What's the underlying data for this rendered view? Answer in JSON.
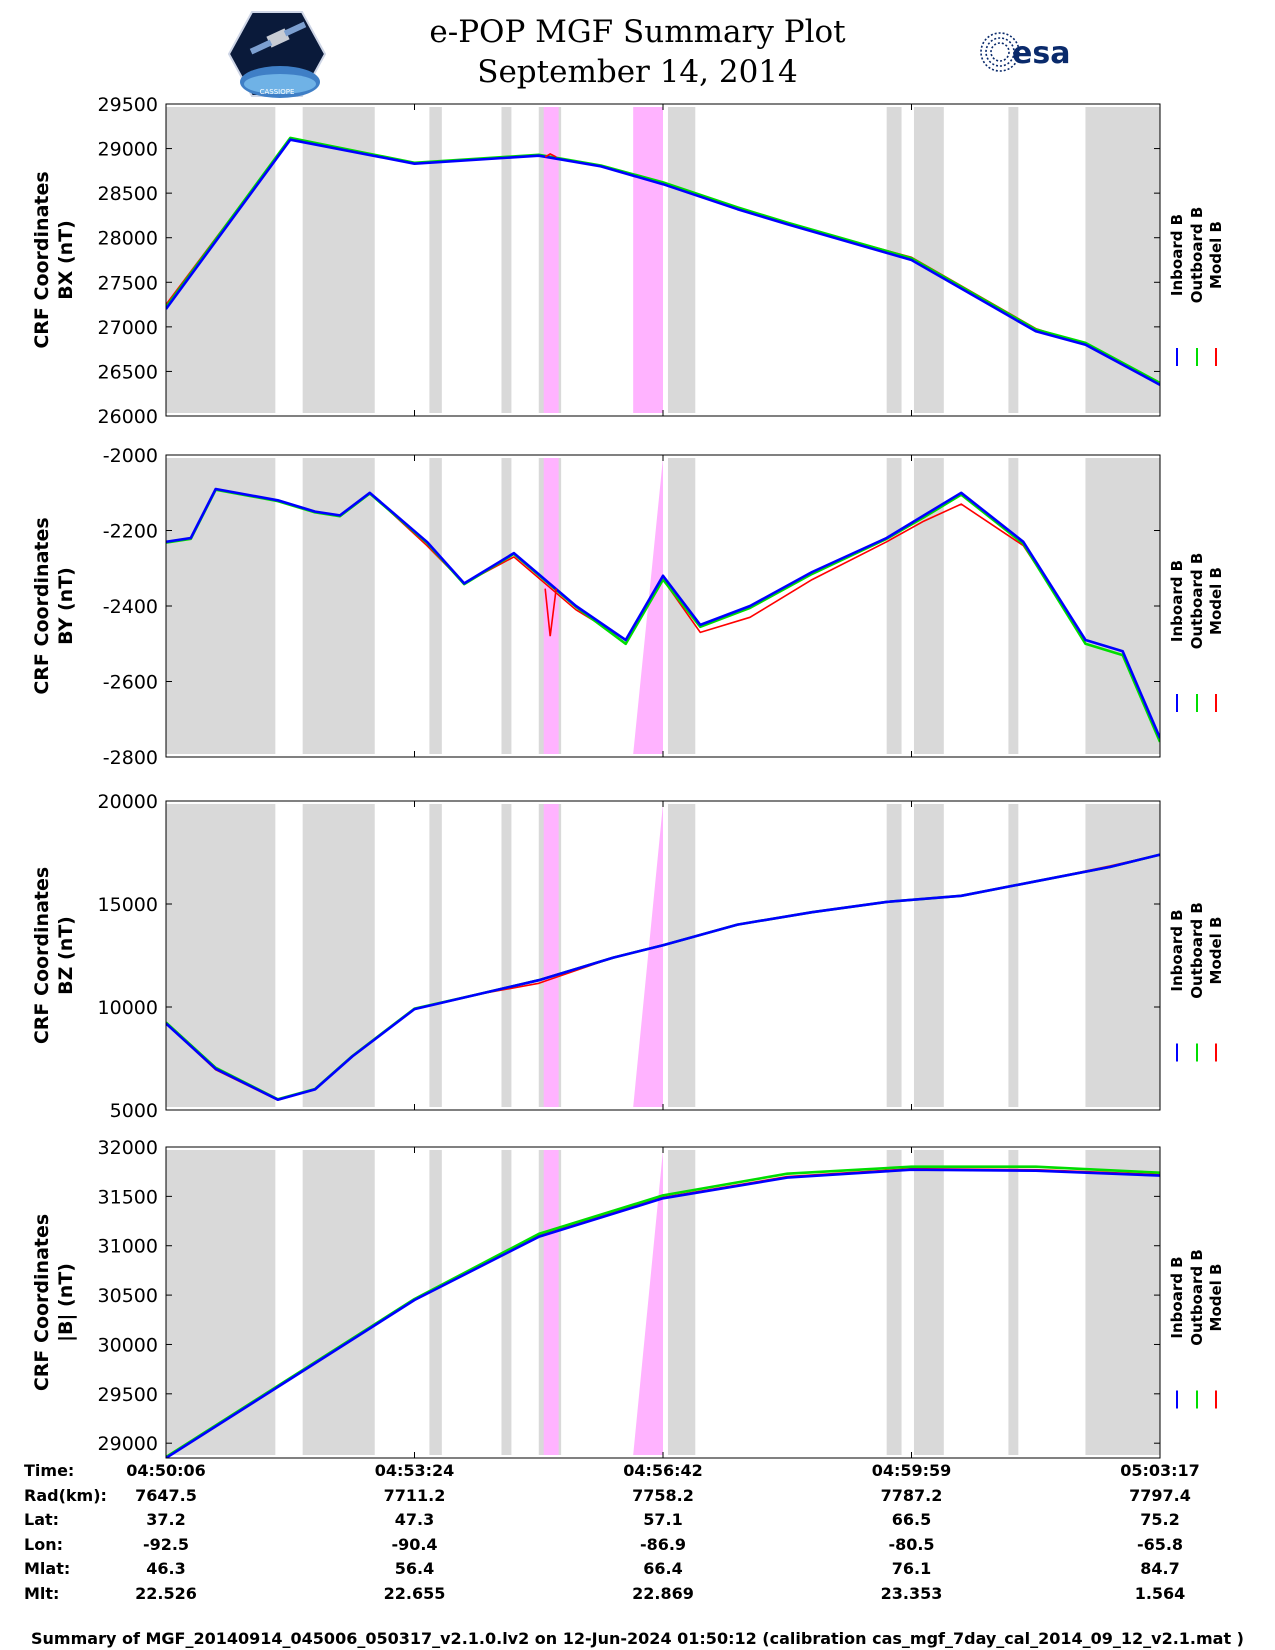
{
  "header": {
    "title_line1": "e-POP MGF Summary Plot",
    "title_line2": "September 14, 2014",
    "logo_left_text": "CASSIOPE",
    "logo_right_text": "esa"
  },
  "colors": {
    "inboard": "#0000ff",
    "outboard": "#00dd00",
    "model": "#ff0000",
    "shade_gray": "#d9d9d9",
    "shade_magenta": "#ffb3ff"
  },
  "legend": [
    "Inboard B",
    "Outboard B",
    "Model B"
  ],
  "chart_data": [
    {
      "type": "line",
      "title": "",
      "ylabel": [
        "CRF Coordinates",
        "BX (nT)"
      ],
      "xlabel": "",
      "xlim": [
        0,
        4.0
      ],
      "ylim": [
        26000,
        29500
      ],
      "yticks": [
        26000,
        26500,
        27000,
        27500,
        28000,
        28500,
        29000,
        29500
      ],
      "ytick_labels": [
        "26000",
        "26500",
        "27000",
        "27500",
        "28000",
        "28500",
        "29000",
        "29500"
      ],
      "x_minutes_from_start": [
        0,
        0.5,
        1.0,
        1.5,
        1.75,
        2.0,
        2.3,
        2.5,
        3.0,
        3.5,
        3.7,
        4.0
      ],
      "series": [
        {
          "name": "Inboard B",
          "values": [
            27200,
            29100,
            28830,
            28920,
            28800,
            28600,
            28320,
            28150,
            27750,
            26950,
            26800,
            26350
          ]
        },
        {
          "name": "Outboard B",
          "values": [
            27220,
            29120,
            28840,
            28930,
            28810,
            28620,
            28340,
            28170,
            27770,
            26970,
            26820,
            26370
          ]
        },
        {
          "name": "Model B",
          "values": [
            27250,
            29110,
            28830,
            28930,
            28810,
            28610,
            28330,
            28160,
            27780,
            26980,
            26800,
            26350
          ]
        }
      ],
      "annotations": {
        "model_spike_at_min": 1.55,
        "model_spike_value": 28940
      }
    },
    {
      "type": "line",
      "title": "",
      "ylabel": [
        "CRF Coordinates",
        "BY (nT)"
      ],
      "xlabel": "",
      "xlim": [
        0,
        4.0
      ],
      "ylim": [
        -2800,
        -2000
      ],
      "yticks": [
        -2800,
        -2600,
        -2400,
        -2200,
        -2000
      ],
      "ytick_labels": [
        "-2800",
        "-2600",
        "-2400",
        "-2200",
        "-2000"
      ],
      "x_minutes_from_start": [
        0,
        0.1,
        0.2,
        0.45,
        0.6,
        0.7,
        0.82,
        1.05,
        1.2,
        1.4,
        1.65,
        1.85,
        2.0,
        2.15,
        2.35,
        2.6,
        2.9,
        3.05,
        3.2,
        3.45,
        3.7,
        3.85,
        4.0
      ],
      "series": [
        {
          "name": "Inboard B",
          "values": [
            -2230,
            -2220,
            -2090,
            -2120,
            -2150,
            -2160,
            -2100,
            -2230,
            -2340,
            -2260,
            -2400,
            -2490,
            -2320,
            -2450,
            -2400,
            -2310,
            -2220,
            -2160,
            -2100,
            -2230,
            -2490,
            -2520,
            -2750
          ]
        },
        {
          "name": "Outboard B",
          "values": [
            -2232,
            -2222,
            -2092,
            -2122,
            -2152,
            -2162,
            -2102,
            -2232,
            -2342,
            -2262,
            -2402,
            -2500,
            -2330,
            -2455,
            -2405,
            -2315,
            -2222,
            -2165,
            -2105,
            -2235,
            -2500,
            -2530,
            -2760
          ]
        },
        {
          "name": "Model B",
          "values": [
            -2230,
            -2220,
            -2090,
            -2120,
            -2150,
            -2160,
            -2100,
            -2240,
            -2340,
            -2270,
            -2410,
            -2490,
            -2330,
            -2470,
            -2430,
            -2330,
            -2230,
            -2175,
            -2130,
            -2240,
            -2490,
            -2520,
            -2750
          ]
        }
      ],
      "annotations": {
        "model_dip_at_min": 1.55,
        "model_dip_value": -2480
      }
    },
    {
      "type": "line",
      "title": "",
      "ylabel": [
        "CRF Coordinates",
        "BZ (nT)"
      ],
      "xlabel": "",
      "xlim": [
        0,
        4.0
      ],
      "ylim": [
        5000,
        20000
      ],
      "yticks": [
        5000,
        10000,
        15000,
        20000
      ],
      "ytick_labels": [
        "5000",
        "10000",
        "15000",
        "20000"
      ],
      "x_minutes_from_start": [
        0,
        0.2,
        0.45,
        0.6,
        0.75,
        1.0,
        1.25,
        1.5,
        1.8,
        2.0,
        2.3,
        2.6,
        2.9,
        3.2,
        3.5,
        3.8,
        4.0
      ],
      "series": [
        {
          "name": "Inboard B",
          "values": [
            9200,
            7000,
            5500,
            6000,
            7600,
            9900,
            10600,
            11300,
            12400,
            13000,
            14000,
            14600,
            15100,
            15400,
            16100,
            16800,
            17400
          ]
        },
        {
          "name": "Outboard B",
          "values": [
            9250,
            7050,
            5520,
            6020,
            7620,
            9920,
            10600,
            11300,
            12400,
            13000,
            14000,
            14600,
            15100,
            15400,
            16100,
            16800,
            17400
          ]
        },
        {
          "name": "Model B",
          "values": [
            9200,
            6950,
            5480,
            6000,
            7600,
            9900,
            10600,
            11150,
            12400,
            13000,
            14000,
            14600,
            15100,
            15400,
            16100,
            16850,
            17400
          ]
        }
      ]
    },
    {
      "type": "line",
      "title": "",
      "ylabel": [
        "CRF Coordinates",
        "|B| (nT)"
      ],
      "xlabel": "",
      "xlim": [
        0,
        4.0
      ],
      "ylim": [
        28850,
        32000
      ],
      "yticks": [
        29000,
        29500,
        30000,
        30500,
        31000,
        31500,
        32000
      ],
      "ytick_labels": [
        "29000",
        "29500",
        "30000",
        "30500",
        "31000",
        "31500",
        "32000"
      ],
      "x_minutes_from_start": [
        0,
        0.5,
        1.0,
        1.5,
        2.0,
        2.5,
        3.0,
        3.5,
        4.0
      ],
      "series": [
        {
          "name": "Inboard B",
          "values": [
            28850,
            29650,
            30450,
            31090,
            31480,
            31690,
            31770,
            31760,
            31710
          ]
        },
        {
          "name": "Outboard B",
          "values": [
            28860,
            29660,
            30460,
            31120,
            31510,
            31730,
            31800,
            31800,
            31740
          ]
        },
        {
          "name": "Model B",
          "values": [
            28850,
            29650,
            30450,
            31100,
            31490,
            31700,
            31780,
            31770,
            31720
          ]
        }
      ]
    }
  ],
  "shaded_regions_minutes": {
    "gray": [
      [
        0,
        0.44
      ],
      [
        0.55,
        0.84
      ],
      [
        1.06,
        1.11
      ],
      [
        1.35,
        1.39
      ],
      [
        1.5,
        1.59
      ],
      [
        2.02,
        2.13
      ],
      [
        2.9,
        2.96
      ],
      [
        3.01,
        3.13
      ],
      [
        3.39,
        3.43
      ],
      [
        3.7,
        4.0
      ]
    ],
    "magenta": [
      [
        1.52,
        1.58
      ],
      [
        1.88,
        2.0
      ]
    ]
  },
  "x_axis_ticks": [
    "04:50:06",
    "04:53:24",
    "04:56:42",
    "04:59:59",
    "05:03:17"
  ],
  "info_table": {
    "labels": [
      "Time:",
      "Rad(km):",
      "Lat:",
      "Lon:",
      "Mlat:",
      "Mlt:"
    ],
    "rows": [
      [
        "04:50:06",
        "04:53:24",
        "04:56:42",
        "04:59:59",
        "05:03:17"
      ],
      [
        "7647.5",
        "7711.2",
        "7758.2",
        "7787.2",
        "7797.4"
      ],
      [
        "37.2",
        "47.3",
        "57.1",
        "66.5",
        "75.2"
      ],
      [
        "-92.5",
        "-90.4",
        "-86.9",
        "-80.5",
        "-65.8"
      ],
      [
        "46.3",
        "56.4",
        "66.4",
        "76.1",
        "84.7"
      ],
      [
        "22.526",
        "22.655",
        "22.869",
        "23.353",
        "1.564"
      ]
    ]
  },
  "footer": "Summary of MGF_20140914_045006_050317_v2.1.0.lv2 on 12-Jun-2024 01:50:12 (calibration cas_mgf_7day_cal_2014_09_12_v2.1.mat )"
}
